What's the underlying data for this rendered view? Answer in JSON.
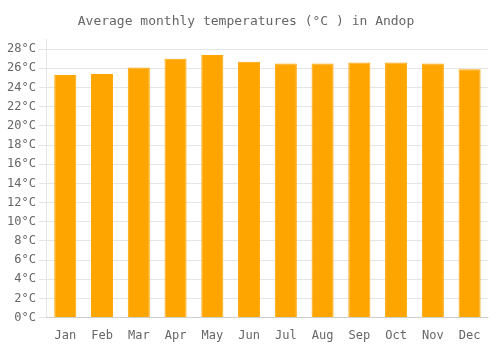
{
  "chart_data": {
    "type": "bar",
    "title": "Average monthly temperatures (°C ) in Andop",
    "categories": [
      "Jan",
      "Feb",
      "Mar",
      "Apr",
      "May",
      "Jun",
      "Jul",
      "Aug",
      "Sep",
      "Oct",
      "Nov",
      "Dec"
    ],
    "values": [
      25.3,
      25.4,
      26.1,
      27.0,
      27.4,
      26.7,
      26.5,
      26.5,
      26.6,
      26.6,
      26.5,
      25.9
    ],
    "color": "#FFA500",
    "ylim": [
      0,
      29
    ],
    "yticks": [
      {
        "value": 0,
        "label": "0°C"
      },
      {
        "value": 2,
        "label": "2°C"
      },
      {
        "value": 4,
        "label": "4°C"
      },
      {
        "value": 6,
        "label": "6°C"
      },
      {
        "value": 8,
        "label": "8°C"
      },
      {
        "value": 10,
        "label": "10°C"
      },
      {
        "value": 12,
        "label": "12°C"
      },
      {
        "value": 14,
        "label": "14°C"
      },
      {
        "value": 16,
        "label": "16°C"
      },
      {
        "value": 18,
        "label": "18°C"
      },
      {
        "value": 20,
        "label": "20°C"
      },
      {
        "value": 22,
        "label": "22°C"
      },
      {
        "value": 24,
        "label": "24°C"
      },
      {
        "value": 26,
        "label": "26°C"
      },
      {
        "value": 28,
        "label": "28°C"
      }
    ],
    "grid": true
  }
}
